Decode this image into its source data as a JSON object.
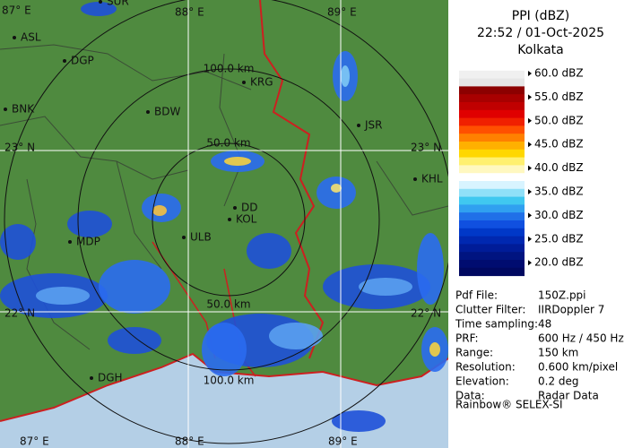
{
  "panel": {
    "title": "PPI (dBZ)",
    "time": "22:52 / 01-Oct-2025",
    "site": "Kolkata",
    "legend": [
      "60.0 dBZ",
      "55.0 dBZ",
      "50.0 dBZ",
      "45.0 dBZ",
      "40.0 dBZ",
      "35.0 dBZ",
      "30.0 dBZ",
      "25.0 dBZ",
      "20.0 dBZ"
    ],
    "info": [
      {
        "label": "Pdf File:",
        "value": "150Z.ppi"
      },
      {
        "label": "Clutter Filter:",
        "value": "IIRDoppler 7"
      },
      {
        "label": "Time sampling:",
        "value": "48"
      },
      {
        "label": "PRF:",
        "value": "600 Hz / 450 Hz"
      },
      {
        "label": "Range:",
        "value": "150 km"
      },
      {
        "label": "Resolution:",
        "value": "0.600 km/pixel"
      },
      {
        "label": "Elevation:",
        "value": "0.2 deg"
      },
      {
        "label": "Data:",
        "value": "Radar Data"
      }
    ],
    "footer": "Rainbow® SELEX-SI"
  },
  "map": {
    "grid_labels": [
      "87° E",
      "88° E",
      "89° E",
      "23° N",
      "23° N",
      "22° N",
      "22° N",
      "87° E",
      "88° E",
      "89° E"
    ],
    "cities": [
      "SUR",
      "ASL",
      "DGP",
      "BNK",
      "BDW",
      "KRG",
      "JSR",
      "KHL",
      "DD",
      "KOL",
      "ULB",
      "MDP",
      "DGH"
    ],
    "ranges": [
      "100.0 km",
      "50.0 km",
      "50.0 km",
      "100.0 km"
    ]
  }
}
